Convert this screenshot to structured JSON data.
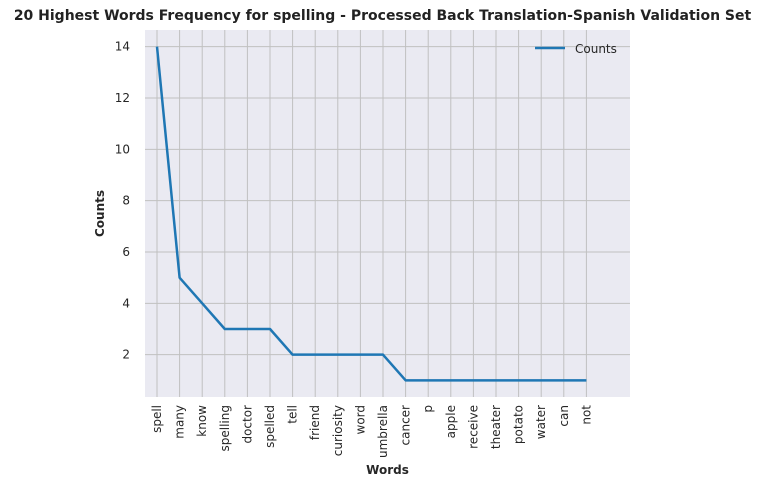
{
  "chart_data": {
    "type": "line",
    "title": "20 Highest Words Frequency for spelling - Processed Back Translation-Spanish Validation Set",
    "xlabel": "Words",
    "ylabel": "Counts",
    "categories": [
      "spell",
      "many",
      "know",
      "spelling",
      "doctor",
      "spelled",
      "tell",
      "friend",
      "curiosity",
      "word",
      "umbrella",
      "cancer",
      "p",
      "apple",
      "receive",
      "theater",
      "potato",
      "water",
      "can",
      "not"
    ],
    "series": [
      {
        "name": "Counts",
        "values": [
          14,
          5,
          4,
          3,
          3,
          3,
          2,
          2,
          2,
          2,
          2,
          1,
          1,
          1,
          1,
          1,
          1,
          1,
          1,
          1
        ]
      }
    ],
    "yticks": [
      2,
      4,
      6,
      8,
      10,
      12,
      14
    ],
    "ylim": [
      0.35,
      14.65
    ],
    "grid": true,
    "legend_position": "top-right",
    "line_color": "#1f77b4",
    "plot_background": "#eaeaf2",
    "grid_color": "#c0c0c0"
  }
}
